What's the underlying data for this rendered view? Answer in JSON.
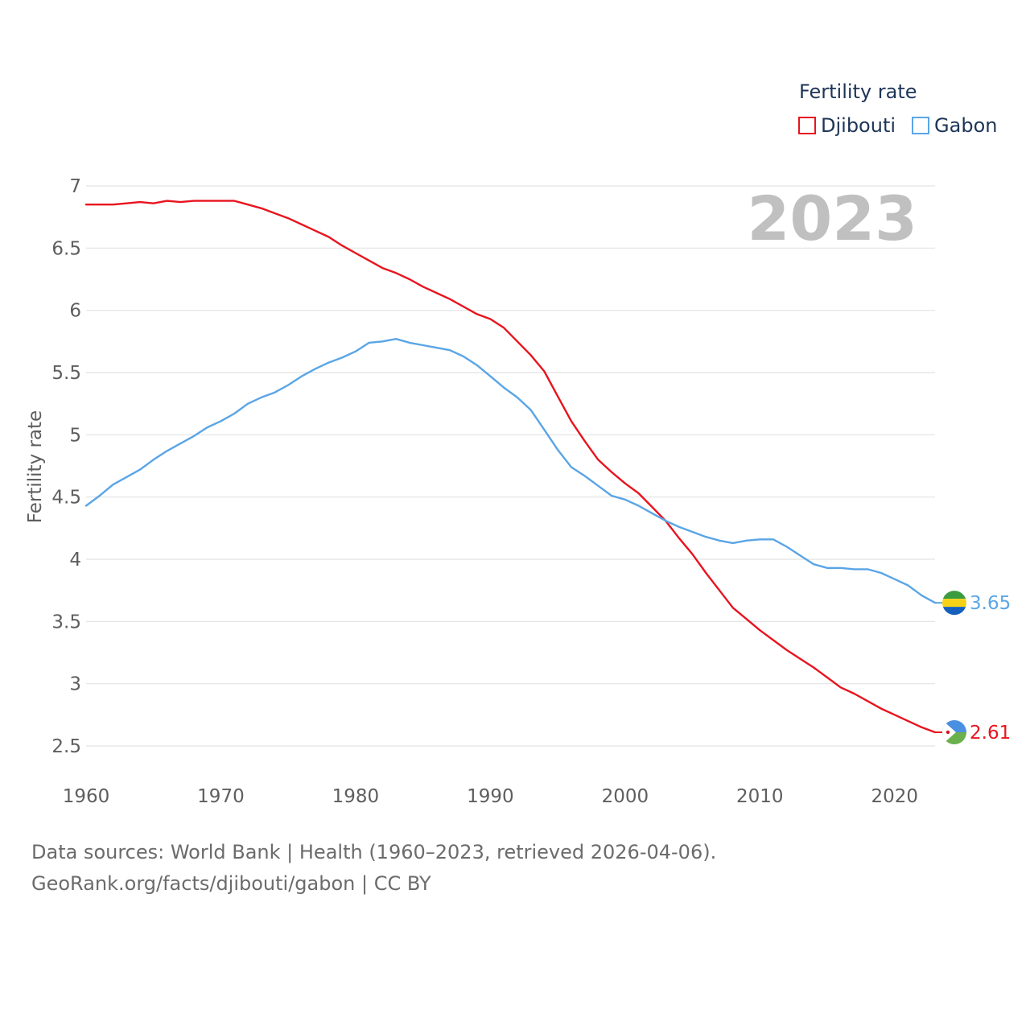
{
  "chart_data": {
    "type": "line",
    "legend_title": "Fertility rate",
    "ylabel": "Fertility rate",
    "year_label": "2023",
    "ylim": [
      2.5,
      7
    ],
    "xlim": [
      1960,
      2023
    ],
    "yticks": [
      "2.5",
      "3",
      "3.5",
      "4",
      "4.5",
      "5",
      "5.5",
      "6",
      "6.5",
      "7"
    ],
    "ytick_values": [
      2.5,
      3,
      3.5,
      4,
      4.5,
      5,
      5.5,
      6,
      6.5,
      7
    ],
    "xticks": [
      "1960",
      "1970",
      "1980",
      "1990",
      "2000",
      "2010",
      "2020"
    ],
    "xtick_values": [
      1960,
      1970,
      1980,
      1990,
      2000,
      2010,
      2020
    ],
    "x": [
      1960,
      1961,
      1962,
      1963,
      1964,
      1965,
      1966,
      1967,
      1968,
      1969,
      1970,
      1971,
      1972,
      1973,
      1974,
      1975,
      1976,
      1977,
      1978,
      1979,
      1980,
      1981,
      1982,
      1983,
      1984,
      1985,
      1986,
      1987,
      1988,
      1989,
      1990,
      1991,
      1992,
      1993,
      1994,
      1995,
      1996,
      1997,
      1998,
      1999,
      2000,
      2001,
      2002,
      2003,
      2004,
      2005,
      2006,
      2007,
      2008,
      2009,
      2010,
      2011,
      2012,
      2013,
      2014,
      2015,
      2016,
      2017,
      2018,
      2019,
      2020,
      2021,
      2022,
      2023
    ],
    "series": [
      {
        "name": "Djibouti",
        "color": "#e8141e",
        "end_label": "2.61",
        "flag": "djibouti-flag",
        "values": [
          6.85,
          6.85,
          6.85,
          6.86,
          6.87,
          6.86,
          6.88,
          6.87,
          6.88,
          6.88,
          6.88,
          6.88,
          6.85,
          6.82,
          6.78,
          6.74,
          6.69,
          6.64,
          6.59,
          6.52,
          6.46,
          6.4,
          6.34,
          6.3,
          6.25,
          6.19,
          6.14,
          6.09,
          6.03,
          5.97,
          5.93,
          5.86,
          5.75,
          5.64,
          5.51,
          5.31,
          5.11,
          4.95,
          4.8,
          4.7,
          4.61,
          4.53,
          4.42,
          4.31,
          4.17,
          4.04,
          3.89,
          3.75,
          3.61,
          3.52,
          3.43,
          3.35,
          3.27,
          3.2,
          3.13,
          3.05,
          2.97,
          2.92,
          2.86,
          2.8,
          2.75,
          2.7,
          2.65,
          2.61
        ]
      },
      {
        "name": "Gabon",
        "color": "#5aa5e6",
        "end_label": "3.65",
        "flag": "gabon-flag",
        "values": [
          4.43,
          4.51,
          4.6,
          4.66,
          4.72,
          4.8,
          4.87,
          4.93,
          4.99,
          5.06,
          5.11,
          5.17,
          5.25,
          5.3,
          5.34,
          5.4,
          5.47,
          5.53,
          5.58,
          5.62,
          5.67,
          5.74,
          5.75,
          5.77,
          5.74,
          5.72,
          5.7,
          5.68,
          5.63,
          5.56,
          5.47,
          5.38,
          5.3,
          5.2,
          5.04,
          4.88,
          4.74,
          4.67,
          4.59,
          4.51,
          4.48,
          4.43,
          4.37,
          4.31,
          4.26,
          4.22,
          4.18,
          4.15,
          4.13,
          4.15,
          4.16,
          4.16,
          4.1,
          4.03,
          3.96,
          3.93,
          3.93,
          3.92,
          3.92,
          3.89,
          3.84,
          3.79,
          3.71,
          3.65
        ]
      }
    ]
  },
  "colors": {
    "grid": "#e2e2e2",
    "axis_text": "#5e5e5e",
    "year_watermark": "#c0c0c0"
  },
  "footer": {
    "source_line1": "Data sources: World Bank | Health (1960–2023, retrieved 2026-04-06).",
    "source_line2": "GeoRank.org/facts/djibouti/gabon | CC BY"
  }
}
